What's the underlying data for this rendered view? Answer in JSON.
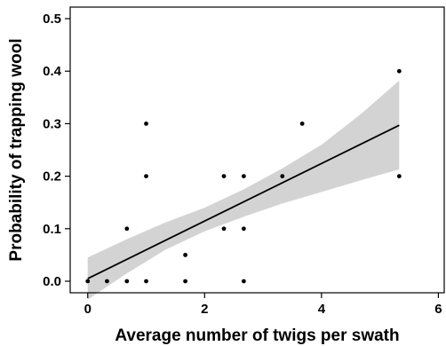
{
  "chart_data": {
    "type": "scatter",
    "title": "",
    "xlabel": "Average number of twigs per swath",
    "ylabel": "Probability of trapping wool",
    "xlim": [
      -0.3,
      6.1
    ],
    "ylim": [
      -0.022,
      0.522
    ],
    "x_ticks": [
      0,
      2,
      4,
      6
    ],
    "y_ticks": [
      0.0,
      0.1,
      0.2,
      0.3,
      0.4,
      0.5
    ],
    "x_tick_labels": [
      "0",
      "2",
      "4",
      "6"
    ],
    "y_tick_labels": [
      "0.0",
      "0.1",
      "0.2",
      "0.3",
      "0.4",
      "0.5"
    ],
    "grid": false,
    "points": [
      {
        "x": 0.0,
        "y": 0.0
      },
      {
        "x": 0.33,
        "y": 0.0
      },
      {
        "x": 0.67,
        "y": 0.0
      },
      {
        "x": 0.67,
        "y": 0.1
      },
      {
        "x": 1.0,
        "y": 0.0
      },
      {
        "x": 1.0,
        "y": 0.2
      },
      {
        "x": 1.0,
        "y": 0.3
      },
      {
        "x": 1.67,
        "y": 0.0
      },
      {
        "x": 1.67,
        "y": 0.05
      },
      {
        "x": 2.33,
        "y": 0.1
      },
      {
        "x": 2.33,
        "y": 0.2
      },
      {
        "x": 2.67,
        "y": 0.0
      },
      {
        "x": 2.67,
        "y": 0.1
      },
      {
        "x": 2.67,
        "y": 0.2
      },
      {
        "x": 3.33,
        "y": 0.2
      },
      {
        "x": 3.67,
        "y": 0.3
      },
      {
        "x": 5.33,
        "y": 0.2
      },
      {
        "x": 5.33,
        "y": 0.4
      }
    ],
    "fit_line": {
      "x": [
        0.0,
        5.33
      ],
      "y": [
        0.005,
        0.297
      ]
    },
    "confidence_band": {
      "x": [
        0.0,
        0.67,
        1.33,
        2.0,
        2.67,
        3.33,
        4.0,
        4.67,
        5.33
      ],
      "lower": [
        -0.035,
        0.015,
        0.06,
        0.095,
        0.123,
        0.148,
        0.17,
        0.192,
        0.213
      ],
      "upper": [
        0.045,
        0.08,
        0.112,
        0.14,
        0.175,
        0.215,
        0.26,
        0.318,
        0.382
      ]
    },
    "colors": {
      "points": "#000000",
      "line": "#000000",
      "band": "#d3d3d3",
      "axes": "#000000"
    }
  }
}
